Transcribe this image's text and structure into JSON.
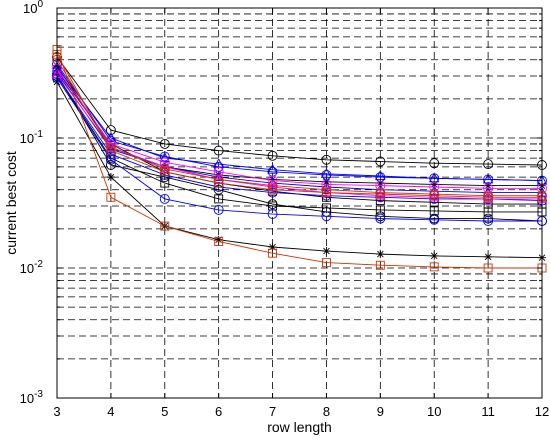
{
  "chart_data": {
    "type": "line",
    "xlabel": "row length",
    "ylabel": "current best cost",
    "y_scale": "log",
    "xlim": [
      3,
      12
    ],
    "ylim": [
      0.001,
      1
    ],
    "grid": true,
    "x": [
      3,
      4,
      5,
      6,
      7,
      8,
      9,
      10,
      11,
      12
    ],
    "x_ticks": [
      "3",
      "4",
      "5",
      "6",
      "7",
      "8",
      "9",
      "10",
      "11",
      "12"
    ],
    "y_ticks": [
      {
        "value": 1,
        "exp": "0"
      },
      {
        "value": 0.1,
        "exp": "-1"
      },
      {
        "value": 0.01,
        "exp": "-2"
      },
      {
        "value": 0.001,
        "exp": "-3"
      }
    ],
    "series": [
      {
        "color": "#000000",
        "marker": "circle",
        "values": [
          0.42,
          0.115,
          0.09,
          0.08,
          0.073,
          0.068,
          0.066,
          0.064,
          0.063,
          0.062
        ]
      },
      {
        "color": "#000000",
        "marker": "circle",
        "values": [
          0.31,
          0.062,
          0.05,
          0.04,
          0.031,
          0.027,
          0.025,
          0.024,
          0.024,
          0.023
        ]
      },
      {
        "color": "#000000",
        "marker": "star",
        "values": [
          0.27,
          0.05,
          0.021,
          0.0165,
          0.0145,
          0.0135,
          0.0128,
          0.0124,
          0.0122,
          0.012
        ]
      },
      {
        "color": "#000000",
        "marker": "square",
        "values": [
          0.3,
          0.07,
          0.045,
          0.034,
          0.03,
          0.029,
          0.028,
          0.0275,
          0.027,
          0.027
        ]
      },
      {
        "color": "#000000",
        "marker": "star",
        "values": [
          0.36,
          0.085,
          0.06,
          0.052,
          0.048,
          0.046,
          0.045,
          0.044,
          0.043,
          0.043
        ]
      },
      {
        "color": "#000000",
        "marker": "square",
        "values": [
          0.33,
          0.09,
          0.055,
          0.045,
          0.039,
          0.035,
          0.033,
          0.032,
          0.031,
          0.031
        ]
      },
      {
        "color": "#0000ff",
        "marker": "circle",
        "values": [
          0.37,
          0.095,
          0.072,
          0.06,
          0.055,
          0.052,
          0.05,
          0.049,
          0.048,
          0.047
        ]
      },
      {
        "color": "#0000ff",
        "marker": "circle",
        "values": [
          0.29,
          0.068,
          0.034,
          0.028,
          0.026,
          0.025,
          0.024,
          0.0235,
          0.023,
          0.023
        ]
      },
      {
        "color": "#0000ff",
        "marker": "triangle",
        "values": [
          0.35,
          0.1,
          0.07,
          0.063,
          0.057,
          0.053,
          0.051,
          0.049,
          0.048,
          0.047
        ]
      },
      {
        "color": "#0000ff",
        "marker": "triangle",
        "values": [
          0.32,
          0.082,
          0.06,
          0.05,
          0.045,
          0.042,
          0.04,
          0.039,
          0.038,
          0.038
        ]
      },
      {
        "color": "#0000ff",
        "marker": "circle",
        "values": [
          0.3,
          0.075,
          0.052,
          0.042,
          0.038,
          0.036,
          0.035,
          0.034,
          0.034,
          0.033
        ]
      },
      {
        "color": "#ff00ff",
        "marker": "circle",
        "values": [
          0.34,
          0.09,
          0.065,
          0.055,
          0.047,
          0.044,
          0.043,
          0.042,
          0.041,
          0.041
        ]
      },
      {
        "color": "#ff00ff",
        "marker": "triangle",
        "values": [
          0.31,
          0.085,
          0.06,
          0.048,
          0.042,
          0.038,
          0.036,
          0.035,
          0.034,
          0.034
        ]
      },
      {
        "color": "#cc3300",
        "marker": "square",
        "values": [
          0.48,
          0.035,
          0.021,
          0.016,
          0.013,
          0.011,
          0.0105,
          0.0102,
          0.01,
          0.01
        ]
      },
      {
        "color": "#cc3300",
        "marker": "square",
        "values": [
          0.44,
          0.08,
          0.055,
          0.045,
          0.04,
          0.038,
          0.037,
          0.036,
          0.035,
          0.035
        ]
      },
      {
        "color": "#cc3300",
        "marker": "circle",
        "values": [
          0.4,
          0.085,
          0.058,
          0.048,
          0.043,
          0.04,
          0.038,
          0.037,
          0.036,
          0.036
        ]
      }
    ]
  }
}
